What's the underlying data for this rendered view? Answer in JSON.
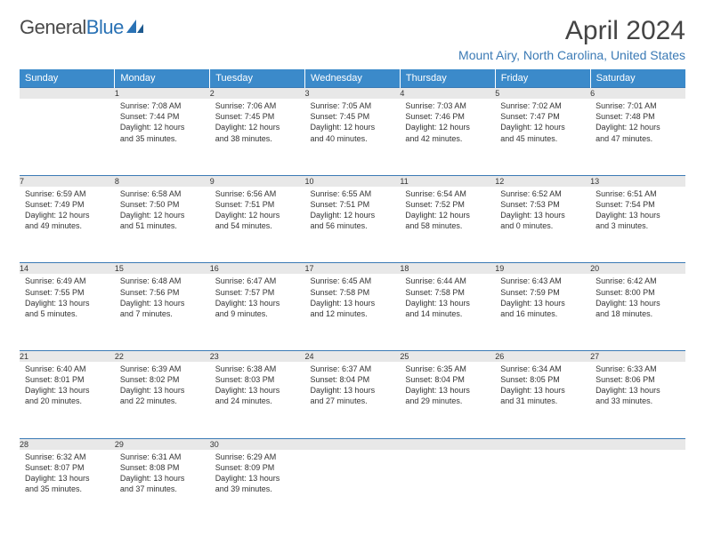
{
  "brand": {
    "part1": "General",
    "part2": "Blue"
  },
  "title": "April 2024",
  "location": "Mount Airy, North Carolina, United States",
  "colors": {
    "header_bg": "#3b8aca",
    "header_fg": "#ffffff",
    "rule": "#3b7ab5",
    "daynum_bg": "#e8e8e8",
    "location_fg": "#3b7ab5",
    "text": "#333333",
    "background": "#ffffff"
  },
  "weekdays": [
    "Sunday",
    "Monday",
    "Tuesday",
    "Wednesday",
    "Thursday",
    "Friday",
    "Saturday"
  ],
  "weeks": [
    [
      null,
      {
        "n": "1",
        "sr": "Sunrise: 7:08 AM",
        "ss": "Sunset: 7:44 PM",
        "d1": "Daylight: 12 hours",
        "d2": "and 35 minutes."
      },
      {
        "n": "2",
        "sr": "Sunrise: 7:06 AM",
        "ss": "Sunset: 7:45 PM",
        "d1": "Daylight: 12 hours",
        "d2": "and 38 minutes."
      },
      {
        "n": "3",
        "sr": "Sunrise: 7:05 AM",
        "ss": "Sunset: 7:45 PM",
        "d1": "Daylight: 12 hours",
        "d2": "and 40 minutes."
      },
      {
        "n": "4",
        "sr": "Sunrise: 7:03 AM",
        "ss": "Sunset: 7:46 PM",
        "d1": "Daylight: 12 hours",
        "d2": "and 42 minutes."
      },
      {
        "n": "5",
        "sr": "Sunrise: 7:02 AM",
        "ss": "Sunset: 7:47 PM",
        "d1": "Daylight: 12 hours",
        "d2": "and 45 minutes."
      },
      {
        "n": "6",
        "sr": "Sunrise: 7:01 AM",
        "ss": "Sunset: 7:48 PM",
        "d1": "Daylight: 12 hours",
        "d2": "and 47 minutes."
      }
    ],
    [
      {
        "n": "7",
        "sr": "Sunrise: 6:59 AM",
        "ss": "Sunset: 7:49 PM",
        "d1": "Daylight: 12 hours",
        "d2": "and 49 minutes."
      },
      {
        "n": "8",
        "sr": "Sunrise: 6:58 AM",
        "ss": "Sunset: 7:50 PM",
        "d1": "Daylight: 12 hours",
        "d2": "and 51 minutes."
      },
      {
        "n": "9",
        "sr": "Sunrise: 6:56 AM",
        "ss": "Sunset: 7:51 PM",
        "d1": "Daylight: 12 hours",
        "d2": "and 54 minutes."
      },
      {
        "n": "10",
        "sr": "Sunrise: 6:55 AM",
        "ss": "Sunset: 7:51 PM",
        "d1": "Daylight: 12 hours",
        "d2": "and 56 minutes."
      },
      {
        "n": "11",
        "sr": "Sunrise: 6:54 AM",
        "ss": "Sunset: 7:52 PM",
        "d1": "Daylight: 12 hours",
        "d2": "and 58 minutes."
      },
      {
        "n": "12",
        "sr": "Sunrise: 6:52 AM",
        "ss": "Sunset: 7:53 PM",
        "d1": "Daylight: 13 hours",
        "d2": "and 0 minutes."
      },
      {
        "n": "13",
        "sr": "Sunrise: 6:51 AM",
        "ss": "Sunset: 7:54 PM",
        "d1": "Daylight: 13 hours",
        "d2": "and 3 minutes."
      }
    ],
    [
      {
        "n": "14",
        "sr": "Sunrise: 6:49 AM",
        "ss": "Sunset: 7:55 PM",
        "d1": "Daylight: 13 hours",
        "d2": "and 5 minutes."
      },
      {
        "n": "15",
        "sr": "Sunrise: 6:48 AM",
        "ss": "Sunset: 7:56 PM",
        "d1": "Daylight: 13 hours",
        "d2": "and 7 minutes."
      },
      {
        "n": "16",
        "sr": "Sunrise: 6:47 AM",
        "ss": "Sunset: 7:57 PM",
        "d1": "Daylight: 13 hours",
        "d2": "and 9 minutes."
      },
      {
        "n": "17",
        "sr": "Sunrise: 6:45 AM",
        "ss": "Sunset: 7:58 PM",
        "d1": "Daylight: 13 hours",
        "d2": "and 12 minutes."
      },
      {
        "n": "18",
        "sr": "Sunrise: 6:44 AM",
        "ss": "Sunset: 7:58 PM",
        "d1": "Daylight: 13 hours",
        "d2": "and 14 minutes."
      },
      {
        "n": "19",
        "sr": "Sunrise: 6:43 AM",
        "ss": "Sunset: 7:59 PM",
        "d1": "Daylight: 13 hours",
        "d2": "and 16 minutes."
      },
      {
        "n": "20",
        "sr": "Sunrise: 6:42 AM",
        "ss": "Sunset: 8:00 PM",
        "d1": "Daylight: 13 hours",
        "d2": "and 18 minutes."
      }
    ],
    [
      {
        "n": "21",
        "sr": "Sunrise: 6:40 AM",
        "ss": "Sunset: 8:01 PM",
        "d1": "Daylight: 13 hours",
        "d2": "and 20 minutes."
      },
      {
        "n": "22",
        "sr": "Sunrise: 6:39 AM",
        "ss": "Sunset: 8:02 PM",
        "d1": "Daylight: 13 hours",
        "d2": "and 22 minutes."
      },
      {
        "n": "23",
        "sr": "Sunrise: 6:38 AM",
        "ss": "Sunset: 8:03 PM",
        "d1": "Daylight: 13 hours",
        "d2": "and 24 minutes."
      },
      {
        "n": "24",
        "sr": "Sunrise: 6:37 AM",
        "ss": "Sunset: 8:04 PM",
        "d1": "Daylight: 13 hours",
        "d2": "and 27 minutes."
      },
      {
        "n": "25",
        "sr": "Sunrise: 6:35 AM",
        "ss": "Sunset: 8:04 PM",
        "d1": "Daylight: 13 hours",
        "d2": "and 29 minutes."
      },
      {
        "n": "26",
        "sr": "Sunrise: 6:34 AM",
        "ss": "Sunset: 8:05 PM",
        "d1": "Daylight: 13 hours",
        "d2": "and 31 minutes."
      },
      {
        "n": "27",
        "sr": "Sunrise: 6:33 AM",
        "ss": "Sunset: 8:06 PM",
        "d1": "Daylight: 13 hours",
        "d2": "and 33 minutes."
      }
    ],
    [
      {
        "n": "28",
        "sr": "Sunrise: 6:32 AM",
        "ss": "Sunset: 8:07 PM",
        "d1": "Daylight: 13 hours",
        "d2": "and 35 minutes."
      },
      {
        "n": "29",
        "sr": "Sunrise: 6:31 AM",
        "ss": "Sunset: 8:08 PM",
        "d1": "Daylight: 13 hours",
        "d2": "and 37 minutes."
      },
      {
        "n": "30",
        "sr": "Sunrise: 6:29 AM",
        "ss": "Sunset: 8:09 PM",
        "d1": "Daylight: 13 hours",
        "d2": "and 39 minutes."
      },
      null,
      null,
      null,
      null
    ]
  ]
}
